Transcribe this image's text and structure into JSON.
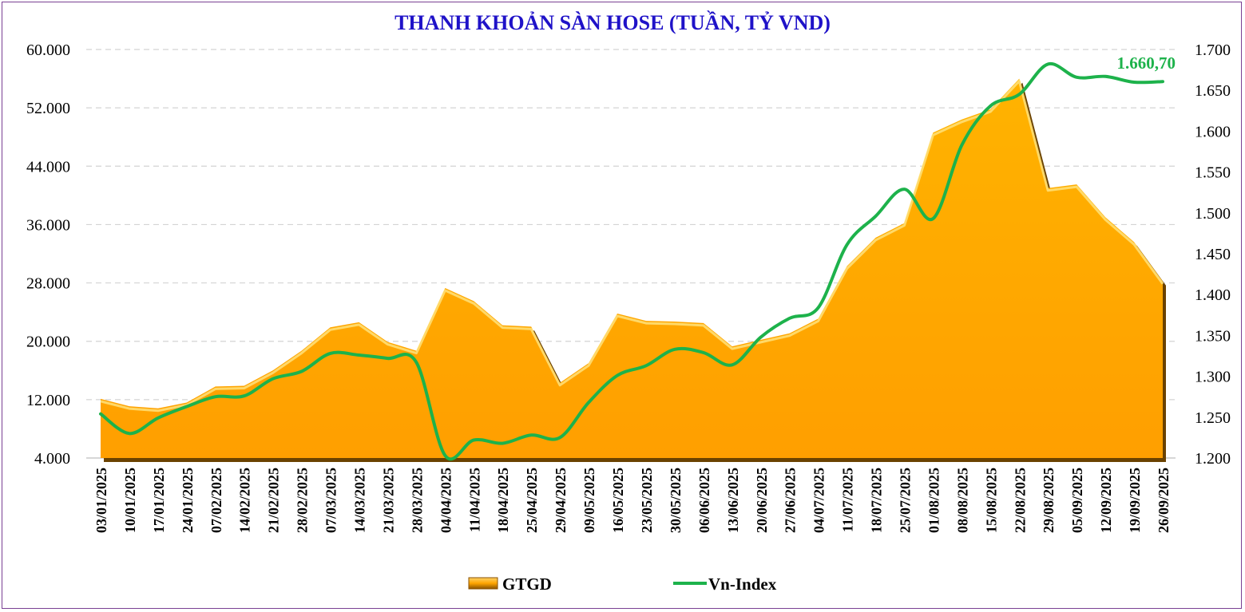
{
  "chart_data": {
    "type": "area",
    "title": "THANH KHOẢN SÀN HOSE (TUẦN, TỶ VND)",
    "categories": [
      "03/01/2025",
      "10/01/2025",
      "17/01/2025",
      "24/01/2025",
      "07/02/2025",
      "14/02/2025",
      "21/02/2025",
      "28/02/2025",
      "07/03/2025",
      "14/03/2025",
      "21/03/2025",
      "28/03/2025",
      "04/04/2025",
      "11/04/2025",
      "18/04/2025",
      "25/04/2025",
      "29/04/2025",
      "09/05/2025",
      "16/05/2025",
      "23/05/2025",
      "30/05/2025",
      "06/06/2025",
      "13/06/2025",
      "20/06/2025",
      "27/06/2025",
      "04/07/2025",
      "11/07/2025",
      "18/07/2025",
      "25/07/2025",
      "01/08/2025",
      "08/08/2025",
      "15/08/2025",
      "22/08/2025",
      "29/08/2025",
      "05/09/2025",
      "12/09/2025",
      "19/09/2025",
      "26/09/2025"
    ],
    "series": [
      {
        "name": "GTGD",
        "type": "area",
        "axis": "left",
        "color": "#FFA500",
        "values": [
          12100,
          11100,
          10800,
          11600,
          13800,
          13900,
          16000,
          18700,
          21900,
          22600,
          19900,
          18700,
          27300,
          25500,
          22200,
          22000,
          14300,
          17000,
          23800,
          22800,
          22700,
          22500,
          19300,
          20200,
          21100,
          23100,
          30300,
          34200,
          36200,
          48600,
          50400,
          51800,
          56000,
          41000,
          41500,
          37000,
          33600,
          28200
        ]
      },
      {
        "name": "Vn-Index",
        "type": "line",
        "axis": "right",
        "color": "#1DB24B",
        "values": [
          1254,
          1230,
          1249,
          1263,
          1275,
          1276,
          1297,
          1306,
          1328,
          1326,
          1322,
          1317,
          1203,
          1222,
          1218,
          1228,
          1225,
          1268,
          1301,
          1313,
          1333,
          1329,
          1314,
          1348,
          1371,
          1384,
          1461,
          1496,
          1529,
          1493,
          1583,
          1631,
          1645,
          1682,
          1666,
          1667,
          1660,
          1660.7
        ]
      }
    ],
    "y_left": {
      "min": 4000,
      "max": 60000,
      "ticks": [
        "4.000",
        "12.000",
        "20.000",
        "28.000",
        "36.000",
        "44.000",
        "52.000",
        "60.000"
      ]
    },
    "y_right": {
      "min": 1200,
      "max": 1700,
      "ticks": [
        "1.200",
        "1.250",
        "1.300",
        "1.350",
        "1.400",
        "1.450",
        "1.500",
        "1.550",
        "1.600",
        "1.650",
        "1.700"
      ]
    },
    "grid": "horizontal dashed",
    "legend_position": "bottom",
    "annotation": {
      "text": "1.660,70",
      "color": "#1DB24B"
    }
  },
  "legend": {
    "area_label": "GTGD",
    "line_label": "Vn-Index"
  }
}
